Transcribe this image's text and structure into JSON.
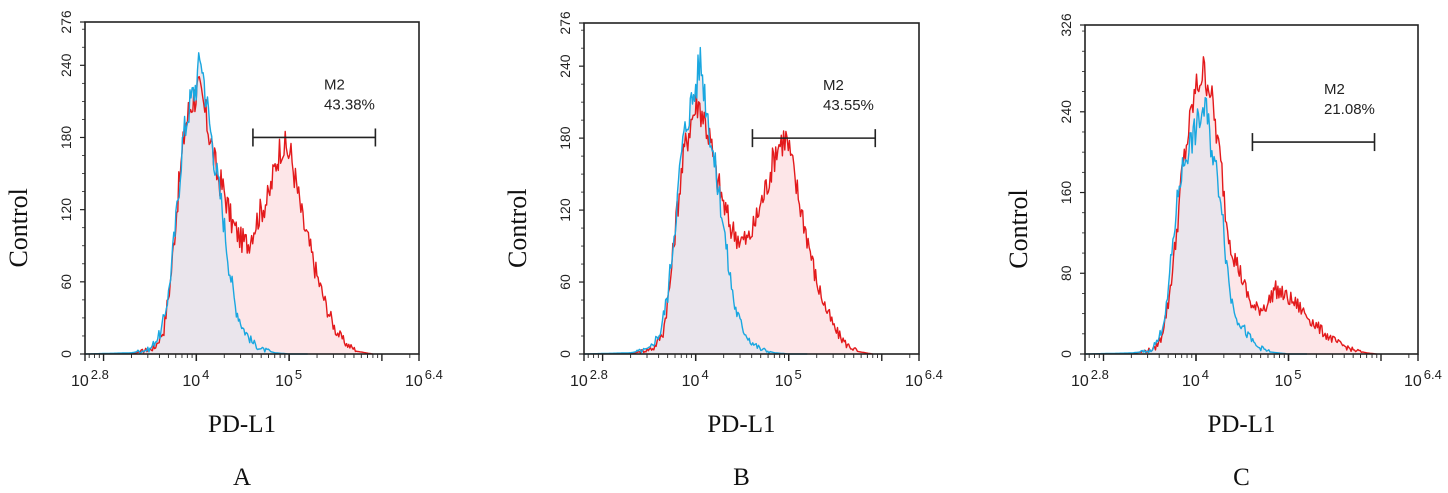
{
  "figure": {
    "colors": {
      "control_line": "#1aa7e0",
      "control_fill": "#e8e4ec",
      "sample_line": "#e31a1c",
      "sample_fill": "#fde6e8",
      "axis": "#222222"
    }
  },
  "chart_data": [
    {
      "type": "area",
      "panel_label": "A",
      "xlabel": "PD-L1",
      "ylabel": "Control",
      "x_scale": "log10",
      "xlim_log10": [
        2.8,
        6.4
      ],
      "x_ticks": [
        {
          "base": "10",
          "exp": "2.8",
          "value_log10": 2.8
        },
        {
          "base": "10",
          "exp": "4",
          "value_log10": 4
        },
        {
          "base": "10",
          "exp": "5",
          "value_log10": 5
        },
        {
          "base": "10",
          "exp": "6.4",
          "value_log10": 6.4
        }
      ],
      "ylim": [
        0,
        276
      ],
      "y_ticks": [
        "0",
        "60",
        "120",
        "180",
        "240",
        "276"
      ],
      "y_tick_values": [
        0,
        60,
        120,
        180,
        240,
        276
      ],
      "gate": {
        "name": "M2",
        "percent": "43.38%",
        "from_log10": 4.61,
        "to_log10": 5.93,
        "y": 180
      },
      "series": [
        {
          "name": "control",
          "x_log10": [
            2.8,
            3.3,
            3.5,
            3.62,
            3.7,
            3.78,
            3.85,
            3.92,
            4.0,
            4.05,
            4.12,
            4.2,
            4.28,
            4.35,
            4.42,
            4.5,
            4.6,
            4.7,
            4.85,
            5.0,
            5.2
          ],
          "y": [
            0,
            1,
            4,
            18,
            50,
            110,
            175,
            205,
            225,
            248,
            205,
            160,
            120,
            75,
            40,
            22,
            10,
            4,
            1,
            0,
            0
          ]
        },
        {
          "name": "sample",
          "x_log10": [
            3.3,
            3.55,
            3.65,
            3.72,
            3.8,
            3.88,
            3.95,
            4.02,
            4.08,
            4.15,
            4.22,
            4.3,
            4.38,
            4.48,
            4.56,
            4.62,
            4.7,
            4.78,
            4.86,
            4.92,
            4.97,
            5.02,
            5.08,
            5.15,
            5.22,
            5.3,
            5.4,
            5.5,
            5.62,
            5.75,
            5.9
          ],
          "y": [
            0,
            5,
            20,
            60,
            130,
            190,
            210,
            220,
            205,
            180,
            150,
            135,
            110,
            95,
            92,
            105,
            120,
            130,
            160,
            175,
            170,
            165,
            140,
            110,
            90,
            65,
            40,
            20,
            8,
            2,
            0
          ]
        }
      ]
    },
    {
      "type": "area",
      "panel_label": "B",
      "xlabel": "PD-L1",
      "ylabel": "Control",
      "x_scale": "log10",
      "xlim_log10": [
        2.8,
        6.4
      ],
      "x_ticks": [
        {
          "base": "10",
          "exp": "2.8",
          "value_log10": 2.8
        },
        {
          "base": "10",
          "exp": "4",
          "value_log10": 4
        },
        {
          "base": "10",
          "exp": "5",
          "value_log10": 5
        },
        {
          "base": "10",
          "exp": "6.4",
          "value_log10": 6.4
        }
      ],
      "ylim": [
        0,
        276
      ],
      "y_ticks": [
        "0",
        "60",
        "120",
        "180",
        "240",
        "276"
      ],
      "y_tick_values": [
        0,
        60,
        120,
        180,
        240,
        276
      ],
      "gate": {
        "name": "M2",
        "percent": "43.55%",
        "from_log10": 4.61,
        "to_log10": 5.93,
        "y": 180
      },
      "series": [
        {
          "name": "control",
          "x_log10": [
            2.8,
            3.3,
            3.5,
            3.62,
            3.7,
            3.78,
            3.85,
            3.92,
            4.0,
            4.05,
            4.12,
            4.2,
            4.28,
            4.35,
            4.42,
            4.5,
            4.6,
            4.7,
            4.85,
            5.0,
            5.2
          ],
          "y": [
            0,
            1,
            4,
            18,
            50,
            110,
            170,
            200,
            222,
            246,
            205,
            160,
            120,
            75,
            40,
            22,
            10,
            4,
            1,
            0,
            0
          ]
        },
        {
          "name": "sample",
          "x_log10": [
            3.3,
            3.55,
            3.65,
            3.72,
            3.8,
            3.88,
            3.95,
            4.02,
            4.08,
            4.15,
            4.22,
            4.3,
            4.38,
            4.48,
            4.56,
            4.62,
            4.7,
            4.78,
            4.86,
            4.92,
            4.97,
            5.02,
            5.08,
            5.15,
            5.22,
            5.3,
            5.4,
            5.5,
            5.62,
            5.75,
            5.9
          ],
          "y": [
            0,
            5,
            18,
            55,
            120,
            170,
            195,
            210,
            200,
            180,
            150,
            125,
            105,
            95,
            95,
            105,
            125,
            145,
            170,
            178,
            180,
            165,
            140,
            115,
            90,
            60,
            38,
            20,
            8,
            2,
            0
          ]
        }
      ]
    },
    {
      "type": "area",
      "panel_label": "C",
      "xlabel": "PD-L1",
      "ylabel": "Control",
      "x_scale": "log10",
      "xlim_log10": [
        2.8,
        6.4
      ],
      "x_ticks": [
        {
          "base": "10",
          "exp": "2.8",
          "value_log10": 2.8
        },
        {
          "base": "10",
          "exp": "4",
          "value_log10": 4
        },
        {
          "base": "10",
          "exp": "5",
          "value_log10": 5
        },
        {
          "base": "10",
          "exp": "6.4",
          "value_log10": 6.4
        }
      ],
      "ylim": [
        0,
        326
      ],
      "y_ticks": [
        "0",
        "80",
        "160",
        "240",
        "326"
      ],
      "y_tick_values": [
        0,
        80,
        160,
        240,
        326
      ],
      "gate": {
        "name": "M2",
        "percent": "21.08%",
        "from_log10": 4.61,
        "to_log10": 5.93,
        "y": 210
      },
      "series": [
        {
          "name": "control",
          "x_log10": [
            2.8,
            3.3,
            3.5,
            3.6,
            3.68,
            3.75,
            3.82,
            3.9,
            3.97,
            4.05,
            4.1,
            4.16,
            4.22,
            4.28,
            4.32,
            4.38,
            4.45,
            4.55,
            4.65,
            4.8,
            5.0,
            5.2
          ],
          "y": [
            0,
            1,
            3,
            15,
            45,
            110,
            170,
            200,
            215,
            235,
            245,
            210,
            180,
            150,
            100,
            55,
            35,
            20,
            8,
            2,
            0,
            0
          ]
        },
        {
          "name": "sample",
          "x_log10": [
            3.3,
            3.55,
            3.62,
            3.7,
            3.78,
            3.85,
            3.92,
            3.98,
            4.03,
            4.08,
            4.15,
            4.22,
            4.28,
            4.33,
            4.4,
            4.48,
            4.55,
            4.62,
            4.7,
            4.78,
            4.85,
            4.92,
            5.0,
            5.1,
            5.2,
            5.3,
            5.42,
            5.55,
            5.7,
            5.85,
            5.95
          ],
          "y": [
            0,
            5,
            15,
            50,
            110,
            180,
            220,
            255,
            270,
            280,
            265,
            220,
            180,
            130,
            100,
            80,
            60,
            45,
            45,
            50,
            65,
            60,
            55,
            48,
            38,
            28,
            18,
            10,
            4,
            1,
            0
          ]
        }
      ]
    }
  ]
}
